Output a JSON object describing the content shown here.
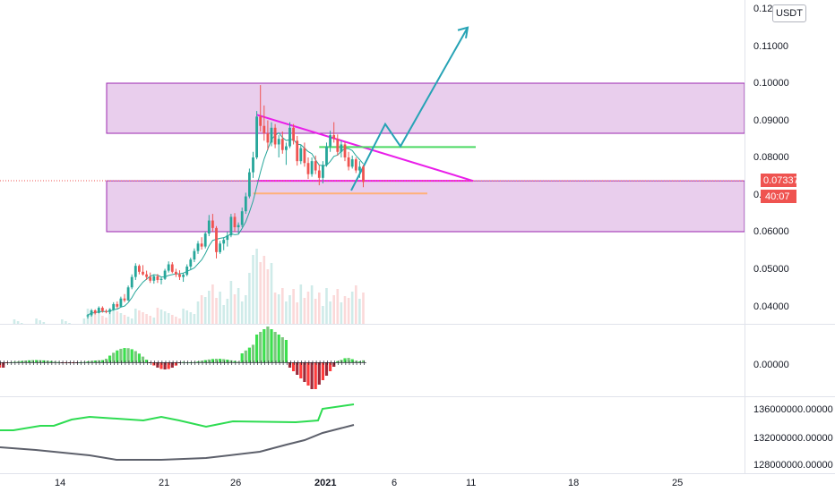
{
  "currency": "USDT",
  "colors": {
    "up": "#26a69a",
    "down": "#ef5350",
    "zone_fill": "#e1bee7",
    "zone_border": "#9c27b0",
    "trendline": "#e91ee9",
    "projection": "#26a3b5",
    "resistance": "#4cd964",
    "support": "#ffb07a",
    "price_tag": "#ef5350",
    "osc_up_strong": "#3ce04e",
    "osc_up_weak": "#7cc77f",
    "osc_down_strong": "#ff3b3b",
    "osc_down_weak": "#9b2a3a",
    "line_green": "#2edc52",
    "line_gray": "#5d606b"
  },
  "price_axis_labels": [
    "0.12000",
    "0.11000",
    "0.10000",
    "0.09000",
    "0.08000",
    "0.07000",
    "0.06000",
    "0.05000",
    "0.04000"
  ],
  "current_price": "0.07337",
  "countdown": "40:07",
  "oscillator_axis_labels": [
    "0.00000"
  ],
  "volume_axis_labels": [
    "136000000.00000",
    "132000000.00000",
    "128000000.00000"
  ],
  "date_labels": [
    "14",
    "21",
    "26",
    "2021",
    "6",
    "11",
    "18",
    "25"
  ],
  "chart_data": {
    "type": "candlestick",
    "ylim": [
      0.035,
      0.122
    ],
    "zones": [
      {
        "from": 0.0865,
        "to": 0.1
      },
      {
        "from": 0.06,
        "to": 0.0737
      }
    ],
    "candles": [
      [
        0.0372,
        0.0378,
        0.0366,
        0.0375
      ],
      [
        0.0375,
        0.0392,
        0.0371,
        0.0388
      ],
      [
        0.0388,
        0.0391,
        0.0377,
        0.0381
      ],
      [
        0.0381,
        0.0399,
        0.0379,
        0.0395
      ],
      [
        0.0395,
        0.0399,
        0.0382,
        0.0386
      ],
      [
        0.0386,
        0.0391,
        0.038,
        0.0384
      ],
      [
        0.0384,
        0.0393,
        0.0378,
        0.039
      ],
      [
        0.039,
        0.041,
        0.0387,
        0.0405
      ],
      [
        0.0405,
        0.0412,
        0.0393,
        0.0398
      ],
      [
        0.0398,
        0.0425,
        0.0396,
        0.042
      ],
      [
        0.042,
        0.0432,
        0.041,
        0.0415
      ],
      [
        0.0415,
        0.0455,
        0.0413,
        0.045
      ],
      [
        0.045,
        0.0485,
        0.0445,
        0.0478
      ],
      [
        0.0478,
        0.0515,
        0.047,
        0.0508
      ],
      [
        0.0508,
        0.0512,
        0.0485,
        0.0492
      ],
      [
        0.0492,
        0.051,
        0.0482,
        0.0485
      ],
      [
        0.0485,
        0.0495,
        0.047,
        0.0478
      ],
      [
        0.0478,
        0.049,
        0.0462,
        0.0468
      ],
      [
        0.0468,
        0.0485,
        0.046,
        0.048
      ],
      [
        0.048,
        0.0486,
        0.0462,
        0.047
      ],
      [
        0.047,
        0.0478,
        0.0458,
        0.0473
      ],
      [
        0.0473,
        0.05,
        0.047,
        0.0495
      ],
      [
        0.0495,
        0.052,
        0.049,
        0.0512
      ],
      [
        0.0512,
        0.0518,
        0.0488,
        0.0492
      ],
      [
        0.0492,
        0.05,
        0.0478,
        0.0485
      ],
      [
        0.0485,
        0.0496,
        0.047,
        0.0478
      ],
      [
        0.0478,
        0.0488,
        0.0465,
        0.0484
      ],
      [
        0.0484,
        0.0512,
        0.048,
        0.0506
      ],
      [
        0.0506,
        0.053,
        0.0498,
        0.0525
      ],
      [
        0.0525,
        0.0555,
        0.0518,
        0.0548
      ],
      [
        0.0548,
        0.0575,
        0.054,
        0.0568
      ],
      [
        0.0568,
        0.0585,
        0.0552,
        0.056
      ],
      [
        0.056,
        0.06,
        0.0555,
        0.0595
      ],
      [
        0.0595,
        0.0645,
        0.0588,
        0.063
      ],
      [
        0.063,
        0.0648,
        0.06,
        0.061
      ],
      [
        0.061,
        0.0615,
        0.0528,
        0.0545
      ],
      [
        0.0545,
        0.0575,
        0.054,
        0.0568
      ],
      [
        0.0568,
        0.0585,
        0.055,
        0.0578
      ],
      [
        0.0578,
        0.06,
        0.056,
        0.059
      ],
      [
        0.059,
        0.0648,
        0.0585,
        0.064
      ],
      [
        0.064,
        0.065,
        0.06,
        0.0612
      ],
      [
        0.0612,
        0.0625,
        0.0595,
        0.0618
      ],
      [
        0.0618,
        0.0665,
        0.0612,
        0.0655
      ],
      [
        0.0655,
        0.0705,
        0.0648,
        0.0695
      ],
      [
        0.0695,
        0.077,
        0.069,
        0.076
      ],
      [
        0.076,
        0.0815,
        0.0745,
        0.08
      ],
      [
        0.08,
        0.0925,
        0.0795,
        0.091
      ],
      [
        0.091,
        0.0995,
        0.087,
        0.0885
      ],
      [
        0.0885,
        0.094,
        0.0845,
        0.0865
      ],
      [
        0.0865,
        0.09,
        0.082,
        0.084
      ],
      [
        0.084,
        0.0895,
        0.083,
        0.088
      ],
      [
        0.088,
        0.089,
        0.0825,
        0.0835
      ],
      [
        0.0835,
        0.086,
        0.08,
        0.085
      ],
      [
        0.085,
        0.087,
        0.081,
        0.082
      ],
      [
        0.082,
        0.084,
        0.078,
        0.083
      ],
      [
        0.083,
        0.0895,
        0.0825,
        0.088
      ],
      [
        0.088,
        0.089,
        0.0835,
        0.0845
      ],
      [
        0.0845,
        0.0858,
        0.0778,
        0.079
      ],
      [
        0.079,
        0.0835,
        0.0782,
        0.0825
      ],
      [
        0.0825,
        0.084,
        0.0775,
        0.0785
      ],
      [
        0.0785,
        0.08,
        0.0742,
        0.0755
      ],
      [
        0.0755,
        0.08,
        0.0748,
        0.079
      ],
      [
        0.079,
        0.0805,
        0.0755,
        0.0765
      ],
      [
        0.0765,
        0.078,
        0.0725,
        0.0745
      ],
      [
        0.0745,
        0.079,
        0.073,
        0.078
      ],
      [
        0.078,
        0.084,
        0.0775,
        0.083
      ],
      [
        0.083,
        0.0872,
        0.0815,
        0.086
      ],
      [
        0.086,
        0.0895,
        0.084,
        0.085
      ],
      [
        0.085,
        0.0862,
        0.0805,
        0.0815
      ],
      [
        0.0815,
        0.0845,
        0.08,
        0.0835
      ],
      [
        0.0835,
        0.0842,
        0.079,
        0.08
      ],
      [
        0.08,
        0.0815,
        0.0765,
        0.0775
      ],
      [
        0.0775,
        0.0805,
        0.077,
        0.0795
      ],
      [
        0.0795,
        0.08,
        0.0758,
        0.0765
      ],
      [
        0.0765,
        0.079,
        0.0745,
        0.0775
      ],
      [
        0.0775,
        0.078,
        0.072,
        0.0734
      ]
    ],
    "trendlines": [
      {
        "name": "descending",
        "from": [
          0,
          0.0915
        ],
        "to": [
          1,
          0.0737
        ]
      },
      {
        "name": "base",
        "from": [
          0,
          0.0737
        ],
        "to": [
          1,
          0.0737
        ]
      },
      {
        "name": "resistance",
        "from": [
          0,
          0.0828
        ],
        "to": [
          1,
          0.0828
        ]
      },
      {
        "name": "support",
        "from": [
          0,
          0.0703
        ],
        "to": [
          1,
          0.0703
        ]
      }
    ],
    "projection": [
      0.0711,
      0.089,
      0.083,
      0.115
    ]
  }
}
